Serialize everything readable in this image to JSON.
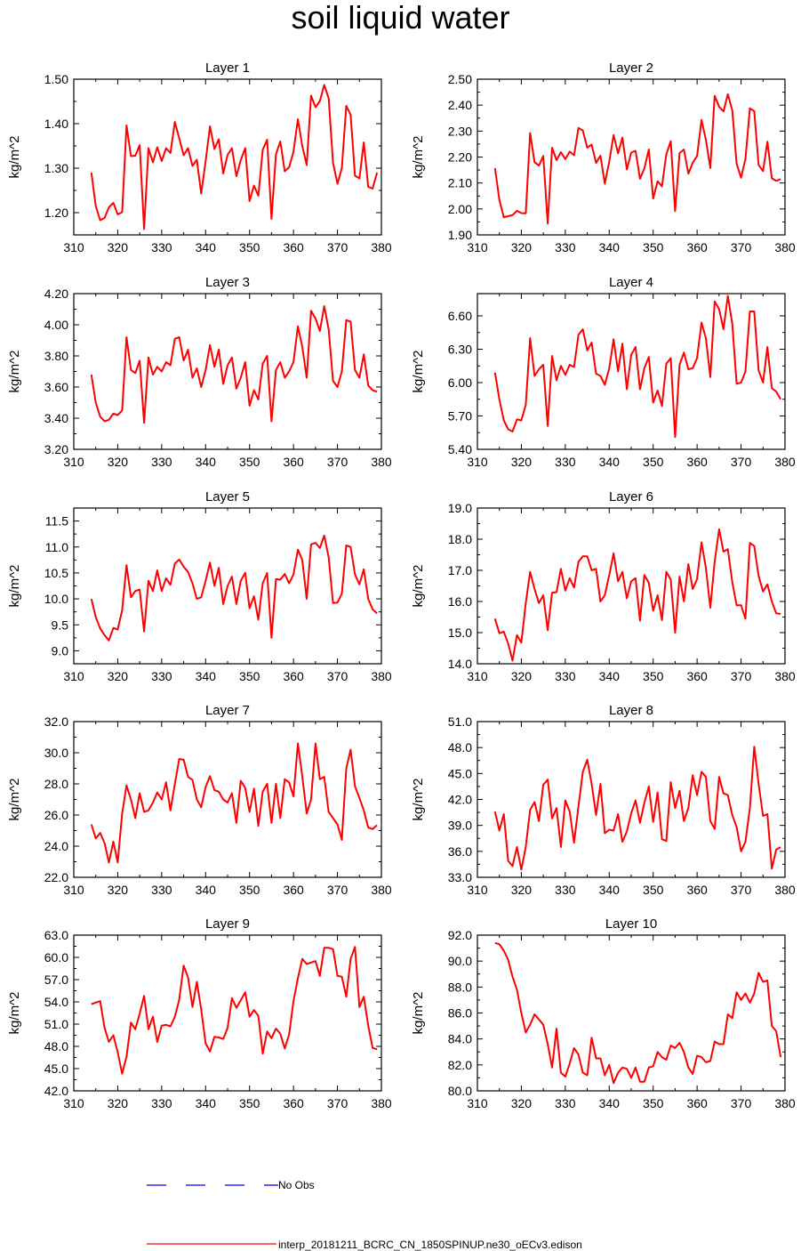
{
  "title": "soil liquid water",
  "legend": {
    "obs_label": "No Obs",
    "obs_color": "#0000ff",
    "model_label": "interp_20181211_BCRC_CN_1850SPINUP.ne30_oECv3.edison",
    "model_color": "#ff0000"
  },
  "chart_data": [
    {
      "type": "line",
      "title": "Layer 1",
      "ylabel": "kg/m^2",
      "xlim": [
        310,
        380
      ],
      "xticks": [
        310,
        320,
        330,
        340,
        350,
        360,
        370,
        380
      ],
      "ylim": [
        1.15,
        1.5
      ],
      "yticks": [
        1.2,
        1.3,
        1.4,
        1.5
      ],
      "ydec": 2,
      "series": [
        {
          "x0": 314,
          "values": [
            1.29,
            1.215,
            1.183,
            1.188,
            1.212,
            1.222,
            1.196,
            1.201,
            1.396,
            1.327,
            1.328,
            1.352,
            1.163,
            1.345,
            1.313,
            1.347,
            1.316,
            1.345,
            1.334,
            1.404,
            1.367,
            1.329,
            1.345,
            1.305,
            1.319,
            1.243,
            1.316,
            1.394,
            1.343,
            1.365,
            1.288,
            1.33,
            1.345,
            1.282,
            1.318,
            1.345,
            1.226,
            1.261,
            1.238,
            1.341,
            1.364,
            1.186,
            1.331,
            1.36,
            1.293,
            1.302,
            1.337,
            1.41,
            1.35,
            1.307,
            1.463,
            1.437,
            1.451,
            1.487,
            1.457,
            1.312,
            1.265,
            1.3,
            1.44,
            1.42,
            1.283,
            1.277,
            1.358,
            1.258,
            1.254,
            1.29
          ]
        }
      ]
    },
    {
      "type": "line",
      "title": "Layer 2",
      "ylabel": "kg/m^2",
      "xlim": [
        310,
        380
      ],
      "xticks": [
        310,
        320,
        330,
        340,
        350,
        360,
        370,
        380
      ],
      "ylim": [
        1.9,
        2.5
      ],
      "yticks": [
        1.9,
        2.0,
        2.1,
        2.2,
        2.3,
        2.4,
        2.5
      ],
      "ydec": 2,
      "series": [
        {
          "x0": 314,
          "values": [
            2.157,
            2.035,
            1.968,
            1.972,
            1.976,
            1.993,
            1.984,
            1.983,
            2.293,
            2.18,
            2.167,
            2.204,
            1.944,
            2.236,
            2.188,
            2.219,
            2.192,
            2.221,
            2.207,
            2.312,
            2.302,
            2.236,
            2.248,
            2.177,
            2.205,
            2.097,
            2.182,
            2.285,
            2.214,
            2.275,
            2.152,
            2.217,
            2.224,
            2.116,
            2.156,
            2.229,
            2.04,
            2.107,
            2.087,
            2.211,
            2.261,
            1.992,
            2.215,
            2.229,
            2.136,
            2.178,
            2.204,
            2.343,
            2.267,
            2.158,
            2.436,
            2.394,
            2.376,
            2.442,
            2.38,
            2.174,
            2.12,
            2.192,
            2.388,
            2.377,
            2.17,
            2.146,
            2.259,
            2.118,
            2.108,
            2.115
          ]
        }
      ]
    },
    {
      "type": "line",
      "title": "Layer 3",
      "ylabel": "kg/m^2",
      "xlim": [
        310,
        380
      ],
      "xticks": [
        310,
        320,
        330,
        340,
        350,
        360,
        370,
        380
      ],
      "ylim": [
        3.2,
        4.2
      ],
      "yticks": [
        3.2,
        3.4,
        3.6,
        3.8,
        4.0,
        4.2
      ],
      "ydec": 2,
      "series": [
        {
          "x0": 314,
          "values": [
            3.68,
            3.5,
            3.41,
            3.38,
            3.39,
            3.43,
            3.42,
            3.45,
            3.92,
            3.71,
            3.69,
            3.77,
            3.37,
            3.79,
            3.68,
            3.73,
            3.7,
            3.76,
            3.74,
            3.91,
            3.92,
            3.77,
            3.84,
            3.66,
            3.72,
            3.6,
            3.71,
            3.87,
            3.73,
            3.84,
            3.62,
            3.74,
            3.79,
            3.59,
            3.66,
            3.76,
            3.48,
            3.58,
            3.52,
            3.75,
            3.8,
            3.38,
            3.71,
            3.76,
            3.66,
            3.7,
            3.76,
            3.99,
            3.86,
            3.66,
            4.09,
            4.04,
            3.96,
            4.12,
            3.97,
            3.64,
            3.6,
            3.7,
            4.03,
            4.02,
            3.71,
            3.66,
            3.81,
            3.61,
            3.58,
            3.57
          ]
        }
      ]
    },
    {
      "type": "line",
      "title": "Layer 4",
      "ylabel": "kg/m^2",
      "xlim": [
        310,
        380
      ],
      "xticks": [
        310,
        320,
        330,
        340,
        350,
        360,
        370,
        380
      ],
      "ylim": [
        5.4,
        6.8
      ],
      "yticks": [
        5.4,
        5.7,
        6.0,
        6.3,
        6.6
      ],
      "ydec": 2,
      "series": [
        {
          "x0": 314,
          "values": [
            6.09,
            5.85,
            5.66,
            5.58,
            5.56,
            5.67,
            5.66,
            5.8,
            6.4,
            6.06,
            6.12,
            6.16,
            5.61,
            6.24,
            6.02,
            6.15,
            6.07,
            6.16,
            6.14,
            6.43,
            6.48,
            6.29,
            6.36,
            6.08,
            6.06,
            5.98,
            6.13,
            6.39,
            6.1,
            6.35,
            5.94,
            6.25,
            6.32,
            5.94,
            6.13,
            6.23,
            5.82,
            5.93,
            5.79,
            6.17,
            6.22,
            5.51,
            6.16,
            6.27,
            6.12,
            6.13,
            6.22,
            6.54,
            6.4,
            6.05,
            6.73,
            6.66,
            6.48,
            6.78,
            6.53,
            5.99,
            6.0,
            6.1,
            6.64,
            6.64,
            6.11,
            6.0,
            6.32,
            5.95,
            5.92,
            5.85
          ]
        }
      ]
    },
    {
      "type": "line",
      "title": "Layer 5",
      "ylabel": "kg/m^2",
      "xlim": [
        310,
        380
      ],
      "xticks": [
        310,
        320,
        330,
        340,
        350,
        360,
        370,
        380
      ],
      "ylim": [
        8.75,
        11.75
      ],
      "yticks": [
        9.0,
        9.5,
        10.0,
        10.5,
        11.0,
        11.5
      ],
      "ydec": 1,
      "series": [
        {
          "x0": 314,
          "values": [
            10.0,
            9.65,
            9.43,
            9.3,
            9.2,
            9.44,
            9.41,
            9.78,
            10.65,
            10.03,
            10.15,
            10.18,
            9.37,
            10.35,
            10.15,
            10.55,
            10.15,
            10.4,
            10.27,
            10.68,
            10.76,
            10.62,
            10.52,
            10.3,
            10.0,
            10.03,
            10.35,
            10.7,
            10.25,
            10.6,
            9.9,
            10.25,
            10.43,
            9.9,
            10.35,
            10.5,
            9.82,
            10.05,
            9.6,
            10.3,
            10.5,
            9.25,
            10.38,
            10.37,
            10.48,
            10.3,
            10.47,
            10.95,
            10.75,
            10.0,
            11.05,
            11.08,
            10.98,
            11.22,
            10.8,
            9.92,
            9.93,
            10.1,
            11.03,
            11.0,
            10.47,
            10.28,
            10.57,
            10.0,
            9.8,
            9.72
          ]
        }
      ]
    },
    {
      "type": "line",
      "title": "Layer 6",
      "ylabel": "kg/m^2",
      "xlim": [
        310,
        380
      ],
      "xticks": [
        310,
        320,
        330,
        340,
        350,
        360,
        370,
        380
      ],
      "ylim": [
        14.0,
        19.0
      ],
      "yticks": [
        14.0,
        15.0,
        16.0,
        17.0,
        18.0,
        19.0
      ],
      "ydec": 1,
      "series": [
        {
          "x0": 314,
          "values": [
            15.45,
            14.98,
            15.03,
            14.65,
            14.1,
            14.92,
            14.68,
            15.95,
            16.95,
            16.4,
            15.95,
            16.2,
            15.08,
            16.28,
            16.3,
            17.05,
            16.35,
            16.75,
            16.45,
            17.28,
            17.45,
            17.45,
            17.0,
            17.05,
            16.0,
            16.2,
            16.85,
            17.55,
            16.65,
            16.95,
            16.1,
            16.65,
            16.75,
            15.38,
            16.85,
            16.6,
            15.7,
            16.2,
            15.4,
            16.95,
            16.7,
            15.0,
            16.8,
            16.0,
            17.2,
            16.4,
            16.72,
            17.9,
            17.08,
            15.8,
            17.28,
            18.32,
            17.6,
            17.68,
            16.62,
            15.88,
            15.88,
            15.45,
            17.88,
            17.78,
            16.82,
            16.32,
            16.55,
            16.0,
            15.62,
            15.6
          ]
        }
      ]
    },
    {
      "type": "line",
      "title": "Layer 7",
      "ylabel": "kg/m^2",
      "xlim": [
        310,
        380
      ],
      "xticks": [
        310,
        320,
        330,
        340,
        350,
        360,
        370,
        380
      ],
      "ylim": [
        22.0,
        32.0
      ],
      "yticks": [
        22.0,
        24.0,
        26.0,
        28.0,
        30.0,
        32.0
      ],
      "ydec": 1,
      "series": [
        {
          "x0": 314,
          "values": [
            25.4,
            24.5,
            24.85,
            24.2,
            22.95,
            24.3,
            22.95,
            26.1,
            27.9,
            27.0,
            25.8,
            27.4,
            26.2,
            26.3,
            26.8,
            27.45,
            27.0,
            28.1,
            26.3,
            28.0,
            29.6,
            29.55,
            28.45,
            28.25,
            27.0,
            26.5,
            27.8,
            28.5,
            27.6,
            27.5,
            27.0,
            26.8,
            27.4,
            25.5,
            28.2,
            27.75,
            26.2,
            27.7,
            25.3,
            27.5,
            28.0,
            25.5,
            28.0,
            25.8,
            28.3,
            28.1,
            27.2,
            30.6,
            28.5,
            26.1,
            27.0,
            30.6,
            28.3,
            28.45,
            26.2,
            25.8,
            25.4,
            24.4,
            29.0,
            30.2,
            27.85,
            27.1,
            26.3,
            25.2,
            25.1,
            25.35
          ]
        }
      ]
    },
    {
      "type": "line",
      "title": "Layer 8",
      "ylabel": "kg/m^2",
      "xlim": [
        310,
        380
      ],
      "xticks": [
        310,
        320,
        330,
        340,
        350,
        360,
        370,
        380
      ],
      "ylim": [
        33.0,
        51.0
      ],
      "yticks": [
        33.0,
        36.0,
        39.0,
        42.0,
        45.0,
        48.0,
        51.0
      ],
      "ydec": 1,
      "series": [
        {
          "x0": 314,
          "values": [
            40.6,
            38.4,
            40.3,
            34.9,
            34.3,
            36.5,
            33.9,
            36.5,
            40.8,
            41.7,
            39.5,
            43.7,
            44.3,
            39.8,
            41.0,
            36.5,
            41.9,
            40.6,
            37.0,
            41.2,
            45.2,
            46.6,
            43.8,
            40.2,
            43.8,
            38.1,
            38.5,
            38.4,
            40.3,
            37.1,
            38.3,
            40.4,
            41.9,
            39.3,
            41.6,
            43.5,
            39.4,
            42.8,
            37.4,
            37.2,
            44.0,
            41.0,
            43.0,
            39.5,
            41.0,
            44.8,
            42.5,
            45.2,
            44.6,
            39.5,
            38.6,
            44.6,
            42.7,
            42.5,
            40.2,
            38.8,
            36.0,
            37.1,
            41.0,
            48.1,
            43.8,
            40.1,
            40.3,
            34.0,
            36.2,
            36.5
          ]
        }
      ]
    },
    {
      "type": "line",
      "title": "Layer 9",
      "ylabel": "kg/m^2",
      "xlim": [
        310,
        380
      ],
      "xticks": [
        310,
        320,
        330,
        340,
        350,
        360,
        370,
        380
      ],
      "ylim": [
        42.0,
        63.0
      ],
      "yticks": [
        42.0,
        45.0,
        48.0,
        51.0,
        54.0,
        57.0,
        60.0,
        63.0
      ],
      "ydec": 1,
      "series": [
        {
          "x0": 314,
          "values": [
            53.7,
            53.9,
            54.1,
            50.5,
            48.6,
            49.5,
            47.2,
            44.3,
            46.6,
            51.2,
            50.3,
            52.4,
            54.8,
            50.3,
            52.0,
            48.6,
            50.8,
            50.9,
            50.7,
            52.0,
            54.3,
            58.9,
            57.3,
            53.3,
            56.7,
            53.0,
            48.4,
            47.3,
            49.3,
            49.2,
            49.0,
            50.5,
            54.5,
            53.2,
            54.2,
            55.3,
            52.0,
            52.9,
            52.1,
            47.0,
            50.0,
            49.1,
            50.4,
            49.7,
            47.7,
            49.6,
            54.1,
            57.2,
            59.8,
            59.1,
            59.3,
            59.5,
            57.5,
            61.3,
            61.3,
            61.1,
            57.5,
            57.4,
            54.7,
            59.8,
            61.4,
            53.3,
            54.7,
            50.8,
            47.8,
            47.6
          ]
        }
      ]
    },
    {
      "type": "line",
      "title": "Layer 10",
      "ylabel": "kg/m^2",
      "xlim": [
        310,
        380
      ],
      "xticks": [
        310,
        320,
        330,
        340,
        350,
        360,
        370,
        380
      ],
      "ylim": [
        80.0,
        92.0
      ],
      "yticks": [
        80.0,
        82.0,
        84.0,
        86.0,
        88.0,
        90.0,
        92.0
      ],
      "ydec": 1,
      "series": [
        {
          "x0": 314,
          "values": [
            91.4,
            91.3,
            90.8,
            90.1,
            88.8,
            87.8,
            86.0,
            84.5,
            85.1,
            85.9,
            85.5,
            85.1,
            83.6,
            81.8,
            84.8,
            81.4,
            81.1,
            82.1,
            83.3,
            82.8,
            81.4,
            81.2,
            84.1,
            82.5,
            82.5,
            81.2,
            82.0,
            80.6,
            81.4,
            81.8,
            81.7,
            81.0,
            81.8,
            80.7,
            80.7,
            81.8,
            81.9,
            83.0,
            82.6,
            82.4,
            83.5,
            83.3,
            83.7,
            83.0,
            81.8,
            81.3,
            82.7,
            82.6,
            82.2,
            82.3,
            83.8,
            83.6,
            83.6,
            85.9,
            85.6,
            87.6,
            87.0,
            87.5,
            86.8,
            87.5,
            89.1,
            88.4,
            88.5,
            85.0,
            84.6,
            82.6
          ]
        }
      ]
    }
  ]
}
